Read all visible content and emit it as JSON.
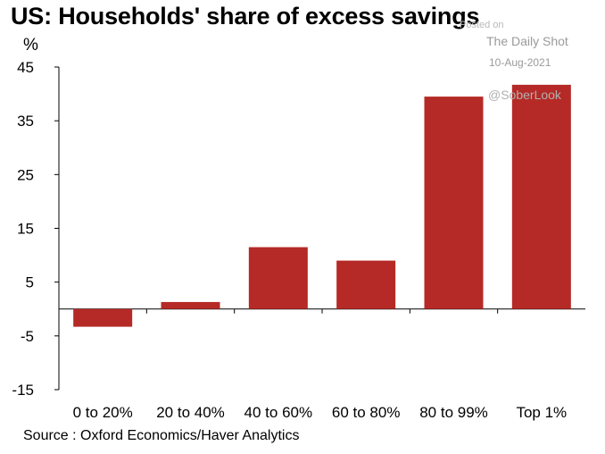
{
  "chart_data": {
    "type": "bar",
    "title": "US: Households' share of excess savings",
    "ylabel": "%",
    "xlabel": "",
    "categories": [
      "0 to 20%",
      "20 to 40%",
      "40 to 60%",
      "60 to 80%",
      "80 to 99%",
      "Top 1%"
    ],
    "values": [
      -3.3,
      1.3,
      11.5,
      9.0,
      39.5,
      41.7
    ],
    "ylim": [
      -15,
      45
    ],
    "yticks": [
      45,
      35,
      25,
      15,
      5,
      -5,
      -15
    ],
    "grid": false,
    "bar_color": "#b52a26",
    "source": "Source : Oxford Economics/Haver Analytics"
  },
  "watermark": {
    "posted_on": "Posted on",
    "publication": "The Daily Shot",
    "date": "10-Aug-2021",
    "handle": "@SoberLook"
  }
}
